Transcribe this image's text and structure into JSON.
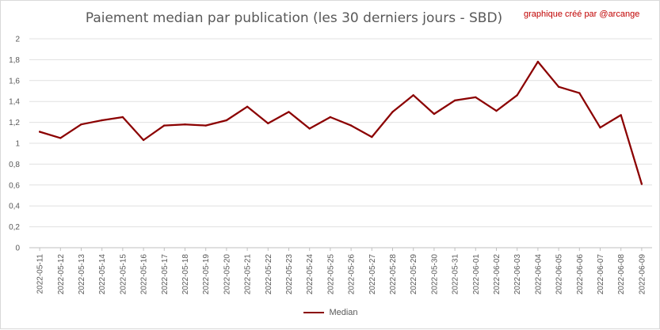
{
  "chart_data": {
    "type": "line",
    "title": "Paiement median par publication (les 30 derniers jours - SBD)",
    "credit": "graphique créé par @arcange",
    "xlabel": "",
    "ylabel": "",
    "ylim": [
      0,
      2
    ],
    "yticks": [
      "0",
      "0,2",
      "0,4",
      "0,6",
      "0,8",
      "1",
      "1,2",
      "1,4",
      "1,6",
      "1,8",
      "2"
    ],
    "grid": true,
    "legend_position": "bottom",
    "categories": [
      "2022-05-11",
      "2022-05-12",
      "2022-05-13",
      "2022-05-14",
      "2022-05-15",
      "2022-05-16",
      "2022-05-17",
      "2022-05-18",
      "2022-05-19",
      "2022-05-20",
      "2022-05-21",
      "2022-05-22",
      "2022-05-23",
      "2022-05-24",
      "2022-05-25",
      "2022-05-26",
      "2022-05-27",
      "2022-05-28",
      "2022-05-29",
      "2022-05-30",
      "2022-05-31",
      "2022-06-01",
      "2022-06-02",
      "2022-06-03",
      "2022-06-04",
      "2022-06-05",
      "2022-06-06",
      "2022-06-07",
      "2022-06-08",
      "2022-06-09"
    ],
    "series": [
      {
        "name": "Median",
        "color": "#8b0000",
        "values": [
          1.11,
          1.05,
          1.18,
          1.22,
          1.25,
          1.03,
          1.17,
          1.18,
          1.17,
          1.22,
          1.35,
          1.19,
          1.3,
          1.14,
          1.25,
          1.17,
          1.06,
          1.3,
          1.46,
          1.28,
          1.41,
          1.44,
          1.31,
          1.46,
          1.78,
          1.54,
          1.48,
          1.15,
          1.27,
          0.61
        ]
      }
    ]
  }
}
